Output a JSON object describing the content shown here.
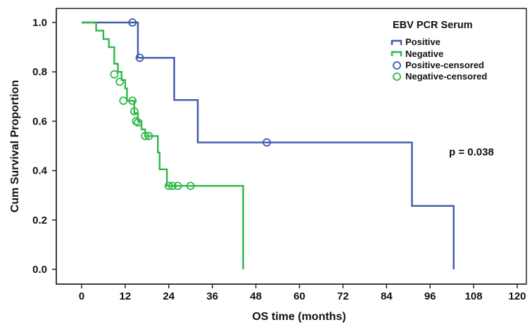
{
  "chart_data": {
    "type": "line",
    "subtype": "kaplan-meier step",
    "title": "",
    "xlabel": "OS time (months)",
    "ylabel": "Cum Survival Proportion",
    "xlim": [
      0,
      120
    ],
    "ylim": [
      0,
      1
    ],
    "x_ticks": [
      0,
      12,
      24,
      36,
      48,
      60,
      72,
      84,
      96,
      108,
      120
    ],
    "y_ticks": [
      0.0,
      0.2,
      0.4,
      0.6,
      0.8,
      1.0
    ],
    "x_tick_labels": [
      "0",
      "12",
      "24",
      "36",
      "48",
      "60",
      "72",
      "84",
      "96",
      "108",
      "120"
    ],
    "y_tick_labels": [
      "0.0",
      "0.2",
      "0.4",
      "0.6",
      "0.8",
      "1.0"
    ],
    "grid": false,
    "legend": {
      "title": "EBV PCR Serum",
      "placement": "top-right",
      "entries": [
        "Positive",
        "Negative",
        "Positive-censored",
        "Negative-censored"
      ]
    },
    "annotations": [
      {
        "text": "p = 0.038"
      }
    ],
    "series": [
      {
        "name": "Positive",
        "color": "#3f5aab",
        "steps": [
          [
            0,
            1.0
          ],
          [
            15.5,
            0.857
          ],
          [
            25.5,
            0.686
          ],
          [
            32,
            0.514
          ],
          [
            91,
            0.257
          ],
          [
            102.5,
            0.0
          ]
        ],
        "end_x": 102.5,
        "censored": [
          [
            14,
            1.0
          ],
          [
            16,
            0.857
          ],
          [
            51,
            0.514
          ]
        ]
      },
      {
        "name": "Negative",
        "color": "#2eb84a",
        "steps": [
          [
            0,
            1.0
          ],
          [
            4,
            0.967
          ],
          [
            6,
            0.933
          ],
          [
            7.5,
            0.9
          ],
          [
            9,
            0.833
          ],
          [
            10,
            0.8
          ],
          [
            11,
            0.767
          ],
          [
            12,
            0.733
          ],
          [
            12.5,
            0.683
          ],
          [
            14.5,
            0.633
          ],
          [
            15.5,
            0.6
          ],
          [
            16.5,
            0.567
          ],
          [
            17.5,
            0.54
          ],
          [
            21,
            0.473
          ],
          [
            21.5,
            0.405
          ],
          [
            23.5,
            0.338
          ],
          [
            44.5,
            0.0
          ]
        ],
        "end_x": 44.5,
        "censored": [
          [
            9,
            0.79
          ],
          [
            10.5,
            0.76
          ],
          [
            11.5,
            0.683
          ],
          [
            14,
            0.683
          ],
          [
            14.5,
            0.64
          ],
          [
            15,
            0.6
          ],
          [
            15.5,
            0.595
          ],
          [
            17.5,
            0.54
          ],
          [
            18.5,
            0.54
          ],
          [
            24,
            0.338
          ],
          [
            25,
            0.338
          ],
          [
            26.5,
            0.338
          ],
          [
            30,
            0.338
          ]
        ]
      }
    ]
  }
}
